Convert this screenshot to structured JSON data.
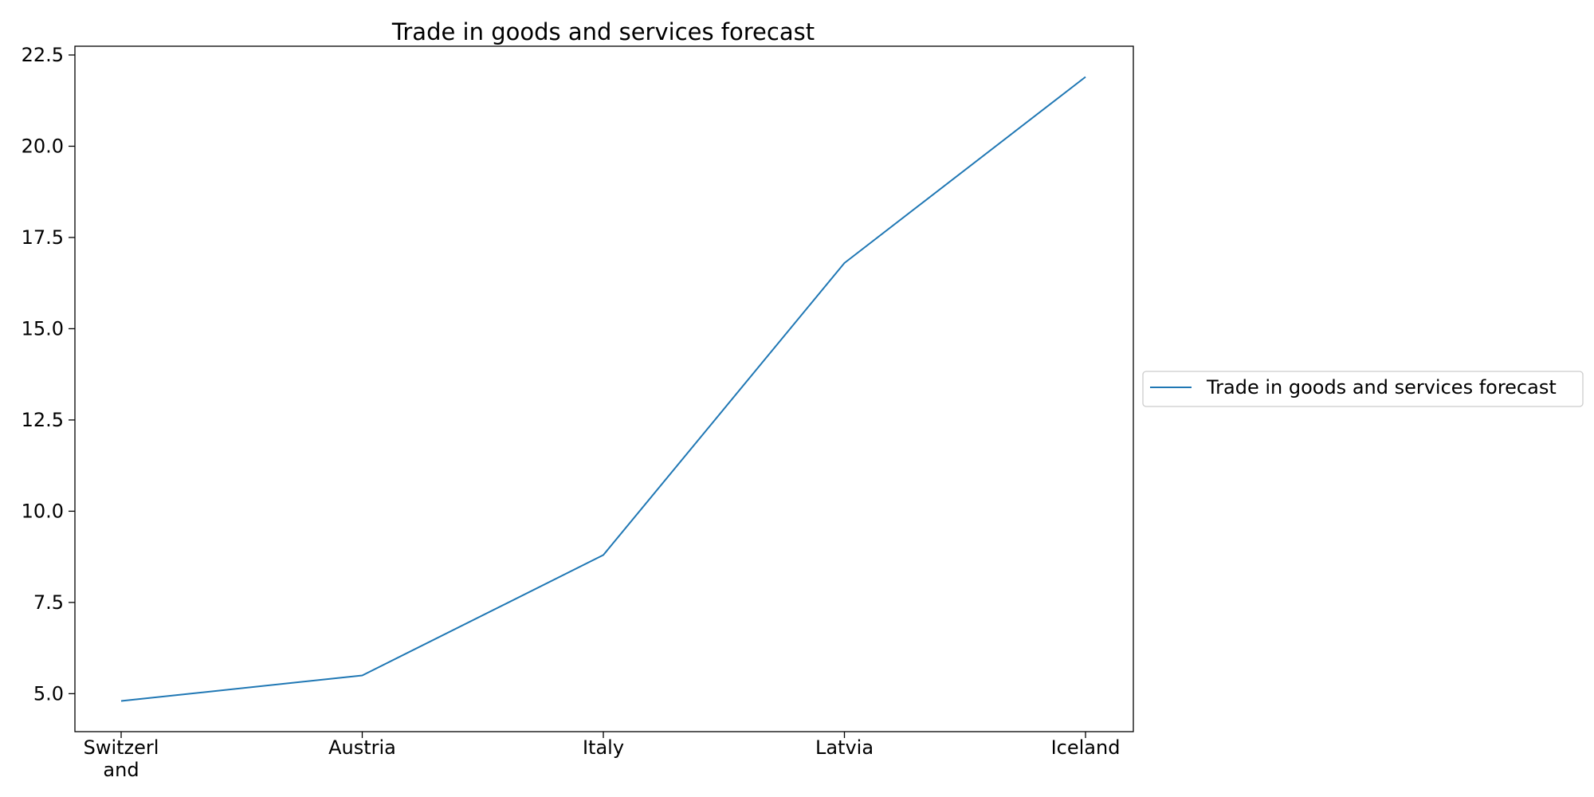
{
  "chart_data": {
    "type": "line",
    "title": "Trade in goods and services forecast",
    "xlabel": "",
    "ylabel": "",
    "categories": [
      "Switzerland",
      "Austria",
      "Italy",
      "Latvia",
      "Iceland"
    ],
    "category_display": [
      [
        "Switzerl",
        "and"
      ],
      [
        "Austria"
      ],
      [
        "Italy"
      ],
      [
        "Latvia"
      ],
      [
        "Iceland"
      ]
    ],
    "series": [
      {
        "name": "Trade in goods and services forecast",
        "values": [
          4.8,
          5.5,
          8.8,
          16.8,
          21.9
        ],
        "color": "#1f77b4"
      }
    ],
    "ylim": [
      3.96,
      22.74
    ],
    "yticks": [
      5.0,
      7.5,
      10.0,
      12.5,
      15.0,
      17.5,
      20.0,
      22.5
    ],
    "ytick_labels": [
      "5.0",
      "7.5",
      "10.0",
      "12.5",
      "15.0",
      "17.5",
      "20.0",
      "22.5"
    ],
    "grid": false,
    "legend_position": "right"
  }
}
